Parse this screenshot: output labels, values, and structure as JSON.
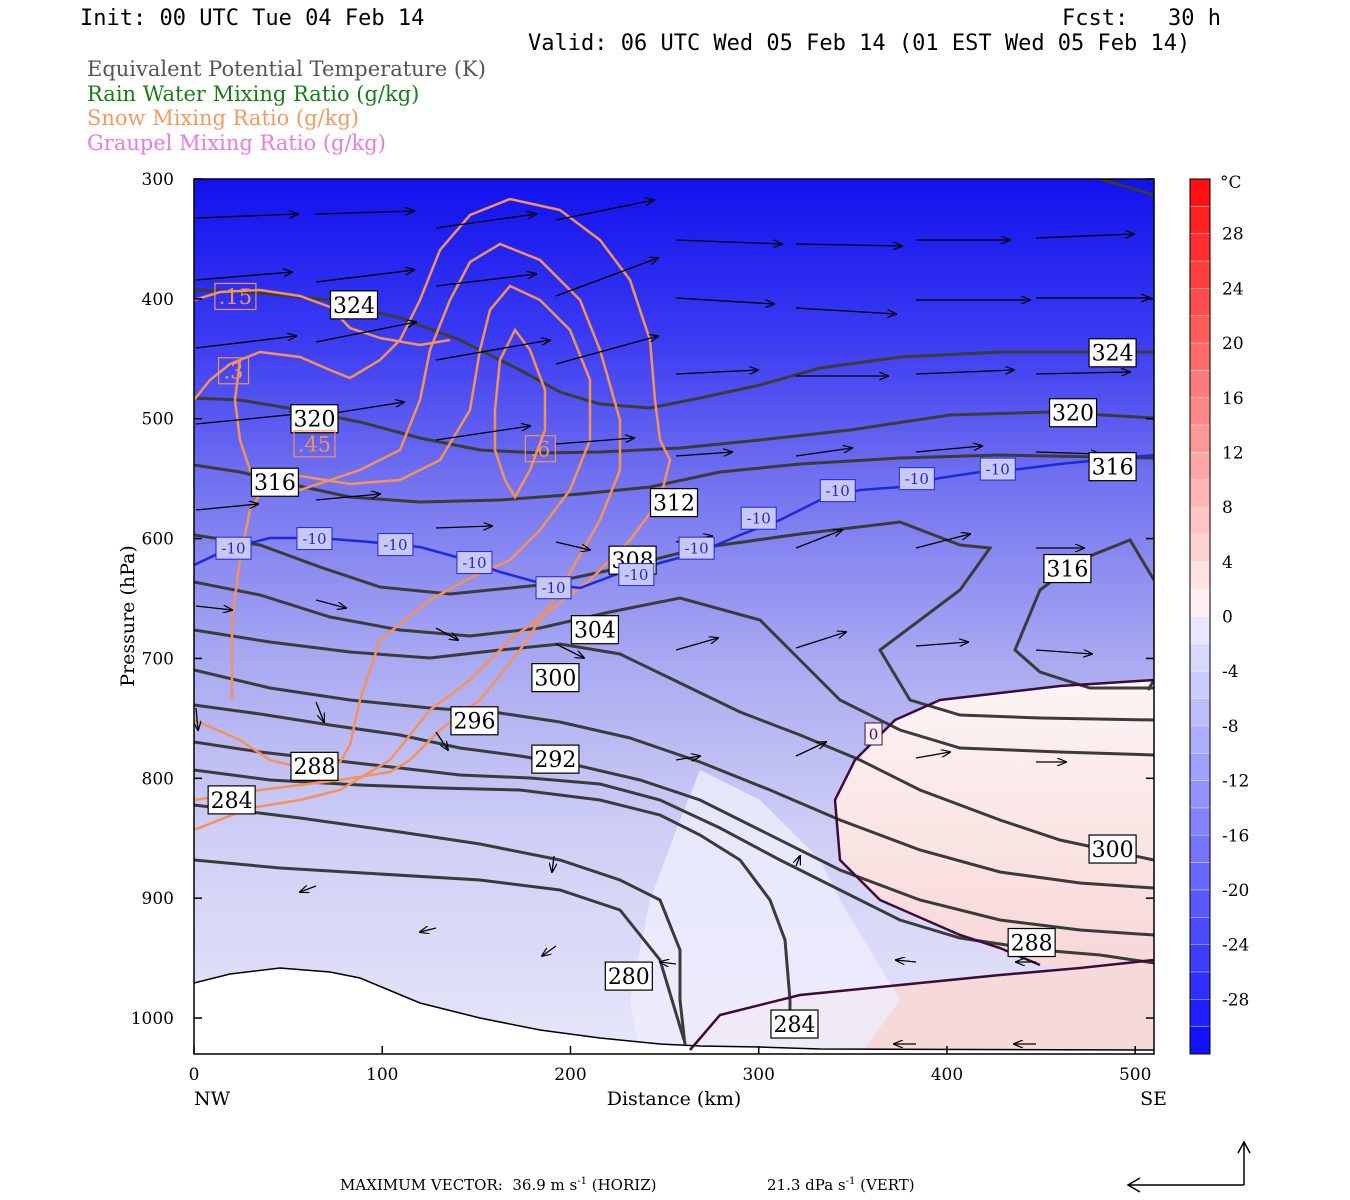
{
  "header": {
    "init": "Init: 00 UTC Tue 04 Feb 14",
    "fcst": "Fcst:   30 h",
    "valid": "Valid: 06 UTC Wed 05 Feb 14 (01 EST Wed 05 Feb 14)"
  },
  "legend": [
    {
      "text": "Equivalent Potential Temperature (K)",
      "color": "#555555"
    },
    {
      "text": "Rain Water Mixing Ratio (g/kg)",
      "color": "#1a7a1a"
    },
    {
      "text": "Snow Mixing Ratio (g/kg)",
      "color": "#f09a66"
    },
    {
      "text": "Graupel Mixing Ratio (g/kg)",
      "color": "#e67ce6"
    }
  ],
  "footer": {
    "max_vector": "MAXIMUM VECTOR:  36.9 m s",
    "max_vector_sup": "-1",
    "horiz": " (HORIZ)",
    "vert_value": "21.3 dPa s",
    "vert_sup": "-1",
    "vert": " (VERT)"
  },
  "chart_data": {
    "type": "contour",
    "xlabel": "Distance (km)",
    "ylabel": "Pressure (hPa)",
    "xlim": [
      0,
      510
    ],
    "ylim": [
      1030,
      300
    ],
    "x_ticks": [
      0,
      100,
      200,
      300,
      400,
      500
    ],
    "y_ticks": [
      300,
      400,
      500,
      600,
      700,
      800,
      900,
      1000
    ],
    "x_end_labels": {
      "left": "NW",
      "right": "SE"
    },
    "colorbar": {
      "unit": "°C",
      "ticks": [
        28,
        24,
        20,
        16,
        12,
        8,
        4,
        0,
        -4,
        -8,
        -12,
        -16,
        -20,
        -24,
        -28
      ],
      "range": [
        -32,
        32
      ]
    },
    "theta_e_labels": [
      {
        "text": "324",
        "x": 85,
        "p": 405
      },
      {
        "text": "324",
        "x": 488,
        "p": 445
      },
      {
        "text": "320",
        "x": 64,
        "p": 500
      },
      {
        "text": "320",
        "x": 467,
        "p": 495
      },
      {
        "text": "316",
        "x": 43,
        "p": 553
      },
      {
        "text": "316",
        "x": 488,
        "p": 540
      },
      {
        "text": "316",
        "x": 464,
        "p": 625
      },
      {
        "text": "312",
        "x": 255,
        "p": 570
      },
      {
        "text": "308",
        "x": 233,
        "p": 618
      },
      {
        "text": "304",
        "x": 213,
        "p": 676
      },
      {
        "text": "300",
        "x": 192,
        "p": 716
      },
      {
        "text": "300",
        "x": 488,
        "p": 859
      },
      {
        "text": "296",
        "x": 149,
        "p": 752
      },
      {
        "text": "292",
        "x": 192,
        "p": 784
      },
      {
        "text": "288",
        "x": 64,
        "p": 790
      },
      {
        "text": "288",
        "x": 445,
        "p": 937
      },
      {
        "text": "284",
        "x": 20,
        "p": 818
      },
      {
        "text": "284",
        "x": 319,
        "p": 1005
      },
      {
        "text": "280",
        "x": 231,
        "p": 965
      }
    ],
    "temp_labels": [
      {
        "text": "-10",
        "x": 21,
        "p": 608
      },
      {
        "text": "-10",
        "x": 64,
        "p": 600
      },
      {
        "text": "-10",
        "x": 107,
        "p": 605
      },
      {
        "text": "-10",
        "x": 149,
        "p": 620
      },
      {
        "text": "-10",
        "x": 191,
        "p": 641
      },
      {
        "text": "-10",
        "x": 235,
        "p": 630
      },
      {
        "text": "-10",
        "x": 267,
        "p": 608
      },
      {
        "text": "-10",
        "x": 300,
        "p": 583
      },
      {
        "text": "-10",
        "x": 342,
        "p": 560
      },
      {
        "text": "-10",
        "x": 384,
        "p": 550
      },
      {
        "text": "-10",
        "x": 427,
        "p": 542
      },
      {
        "text": "0",
        "x": 361,
        "p": 763
      }
    ],
    "snow_labels": [
      {
        "text": ".15",
        "x": 22,
        "p": 398
      },
      {
        "text": ".3",
        "x": 21,
        "p": 460
      },
      {
        "text": ".45",
        "x": 64,
        "p": 521
      },
      {
        "text": ".6",
        "x": 184,
        "p": 525
      }
    ]
  }
}
